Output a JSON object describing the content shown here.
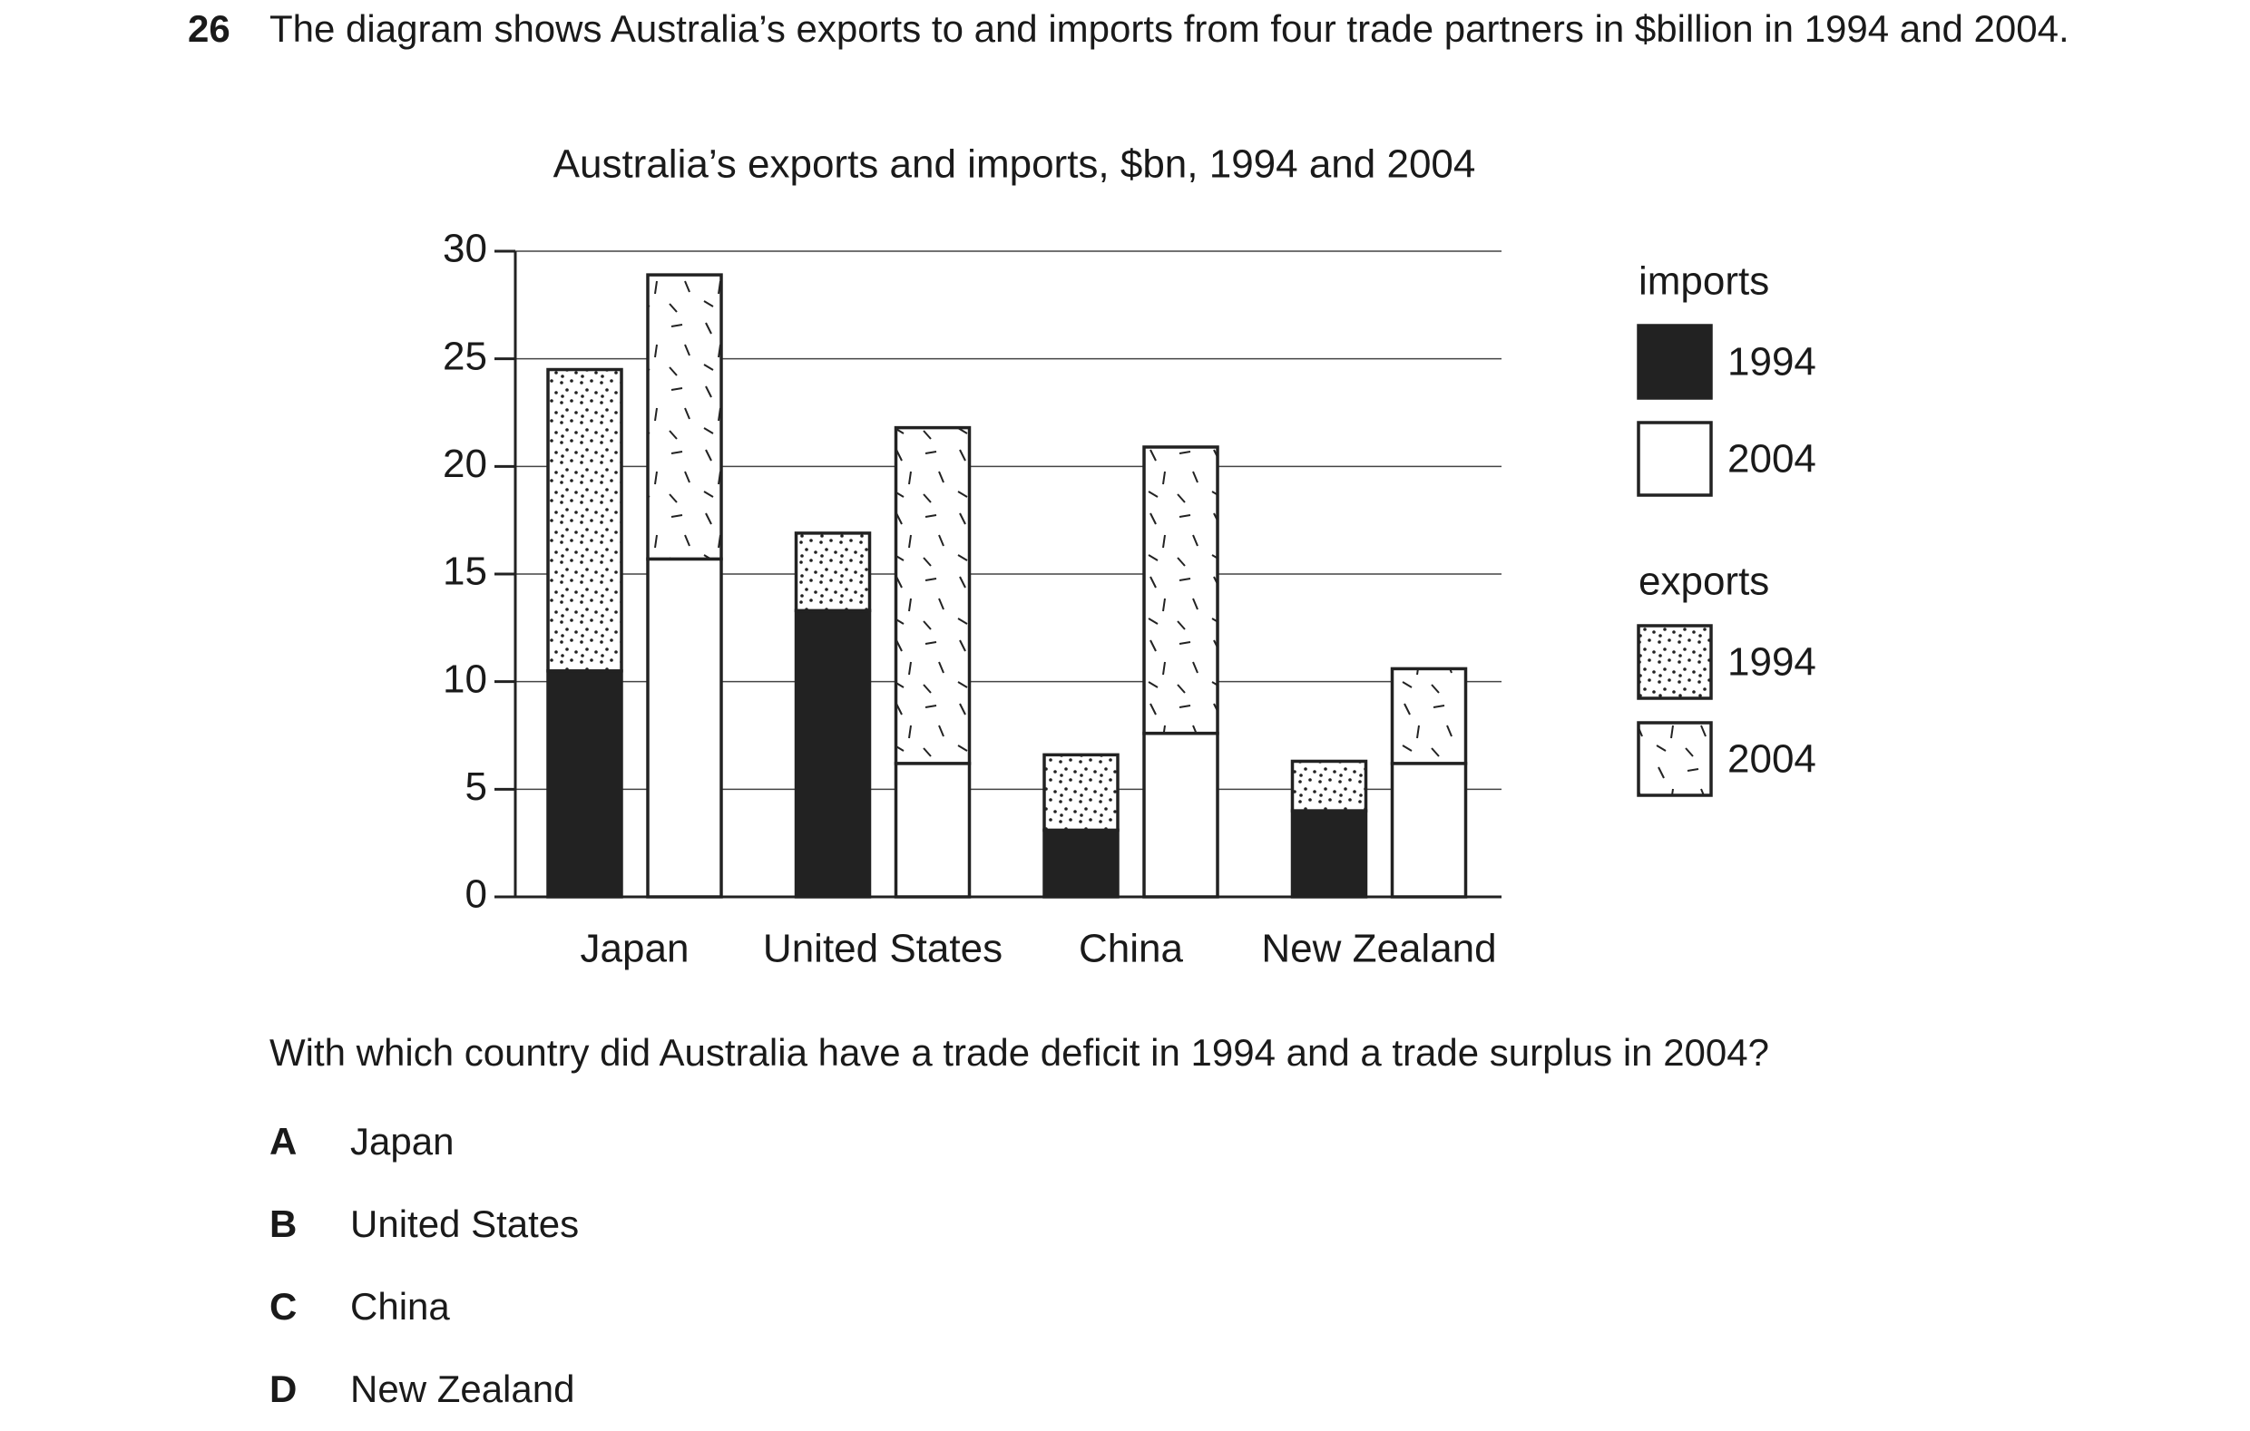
{
  "question": {
    "number": "26",
    "text": "The diagram shows Australia’s exports to and imports from four trade partners in $billion in 1994 and 2004."
  },
  "chart_data": {
    "type": "bar",
    "stacked": true,
    "title": "Australia’s exports and imports, $bn, 1994 and 2004",
    "categories": [
      "Japan",
      "United States",
      "China",
      "New Zealand"
    ],
    "ylim": [
      0,
      30
    ],
    "yticks": [
      0,
      5,
      10,
      15,
      20,
      25,
      30
    ],
    "grid": true,
    "series_groups": [
      {
        "name": "imports",
        "series": [
          {
            "name": "1994",
            "color": "#222222",
            "values": [
              10.5,
              13.3,
              3.1,
              4.0
            ]
          },
          {
            "name": "2004",
            "color": "#ffffff",
            "values": [
              15.7,
              6.2,
              7.6,
              6.2
            ]
          }
        ]
      },
      {
        "name": "exports",
        "series": [
          {
            "name": "1994",
            "color": "#ffffff",
            "pattern": "dots",
            "values": [
              14.0,
              3.6,
              3.5,
              2.3
            ]
          },
          {
            "name": "2004",
            "color": "#ffffff",
            "pattern": "dashes",
            "values": [
              13.2,
              15.6,
              13.3,
              4.4
            ]
          }
        ]
      }
    ]
  },
  "prompt": "With which country did Australia have a trade deficit in 1994 and a trade surplus in 2004?",
  "options": [
    {
      "letter": "A",
      "text": "Japan"
    },
    {
      "letter": "B",
      "text": "United States"
    },
    {
      "letter": "C",
      "text": "China"
    },
    {
      "letter": "D",
      "text": "New Zealand"
    }
  ]
}
